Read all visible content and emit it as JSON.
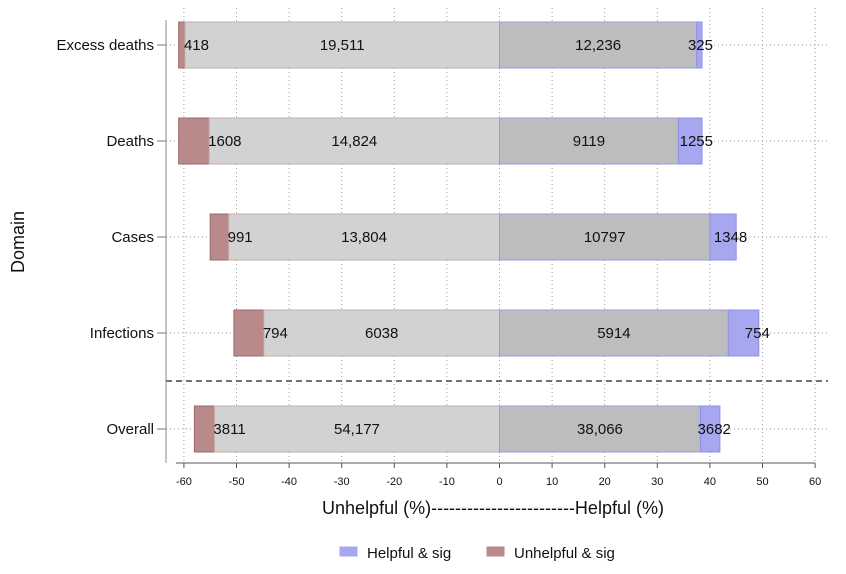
{
  "chart_data": {
    "type": "bar",
    "orientation": "horizontal",
    "stacked": true,
    "ylabel": "Domain",
    "xlabel": "Unhelpful (%)------------------------Helpful (%)",
    "xlim": [
      -62,
      60
    ],
    "xticks": [
      -60,
      -50,
      -40,
      -30,
      -20,
      -10,
      0,
      10,
      20,
      30,
      40,
      50,
      60
    ],
    "grid": "dotted",
    "legend_position": "bottom",
    "categories": [
      "Excess deaths",
      "Deaths",
      "Cases",
      "Infections",
      "Overall"
    ],
    "separator_after_category": "Infections",
    "series": [
      {
        "name": "Unhelpful & sig",
        "color": "#b88a8a",
        "range_start": [
          -61,
          -61,
          -55,
          -50.5,
          -58
        ],
        "values": [
          -1.2,
          -5.8,
          -3.5,
          -5.7,
          -3.8
        ],
        "labels": [
          "418",
          "1608",
          "991",
          "794",
          "3811"
        ]
      },
      {
        "name": "",
        "color": "#d2d2d2",
        "range_start": [
          -59.8,
          -55.2,
          -51.5,
          -44.8,
          -54.2
        ],
        "values": [
          -59.8,
          -55.2,
          -51.5,
          -44.8,
          -54.2
        ],
        "labels": [
          "19,511",
          "14,824",
          "13,804",
          "6038",
          "54,177"
        ]
      },
      {
        "name": "",
        "color": "#bdbdbd",
        "values": [
          37.5,
          34,
          40,
          43.5,
          38.2
        ],
        "labels": [
          "12,236",
          "9119",
          "10797",
          "5914",
          "38,066"
        ]
      },
      {
        "name": "Helpful & sig",
        "color": "#a7a7ef",
        "values": [
          1,
          4.5,
          5,
          5.8,
          3.7
        ],
        "labels": [
          "325",
          "1255",
          "1348",
          "754",
          "3682"
        ]
      }
    ]
  }
}
